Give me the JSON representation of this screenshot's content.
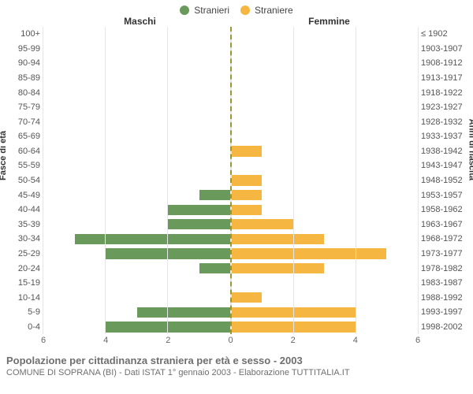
{
  "legend": {
    "male_label": "Stranieri",
    "female_label": "Straniere"
  },
  "panel_titles": {
    "left": "Maschi",
    "right": "Femmine"
  },
  "axis_labels": {
    "left": "Fasce di età",
    "right": "Anni di nascita"
  },
  "colors": {
    "male": "#6a9a5b",
    "female": "#f5b742",
    "grid": "#e6e6e6",
    "center_dash": "#999933",
    "background": "#ffffff",
    "text": "#555555"
  },
  "chart": {
    "type": "population-pyramid",
    "x_max": 6,
    "x_ticks": [
      0,
      2,
      4,
      6
    ],
    "rows": [
      {
        "age": "100+",
        "year": "≤ 1902",
        "male": 0,
        "female": 0
      },
      {
        "age": "95-99",
        "year": "1903-1907",
        "male": 0,
        "female": 0
      },
      {
        "age": "90-94",
        "year": "1908-1912",
        "male": 0,
        "female": 0
      },
      {
        "age": "85-89",
        "year": "1913-1917",
        "male": 0,
        "female": 0
      },
      {
        "age": "80-84",
        "year": "1918-1922",
        "male": 0,
        "female": 0
      },
      {
        "age": "75-79",
        "year": "1923-1927",
        "male": 0,
        "female": 0
      },
      {
        "age": "70-74",
        "year": "1928-1932",
        "male": 0,
        "female": 0
      },
      {
        "age": "65-69",
        "year": "1933-1937",
        "male": 0,
        "female": 0
      },
      {
        "age": "60-64",
        "year": "1938-1942",
        "male": 0,
        "female": 1
      },
      {
        "age": "55-59",
        "year": "1943-1947",
        "male": 0,
        "female": 0
      },
      {
        "age": "50-54",
        "year": "1948-1952",
        "male": 0,
        "female": 1
      },
      {
        "age": "45-49",
        "year": "1953-1957",
        "male": 1,
        "female": 1
      },
      {
        "age": "40-44",
        "year": "1958-1962",
        "male": 2,
        "female": 1
      },
      {
        "age": "35-39",
        "year": "1963-1967",
        "male": 2,
        "female": 2
      },
      {
        "age": "30-34",
        "year": "1968-1972",
        "male": 5,
        "female": 3
      },
      {
        "age": "25-29",
        "year": "1973-1977",
        "male": 4,
        "female": 5
      },
      {
        "age": "20-24",
        "year": "1978-1982",
        "male": 1,
        "female": 3
      },
      {
        "age": "15-19",
        "year": "1983-1987",
        "male": 0,
        "female": 0
      },
      {
        "age": "10-14",
        "year": "1988-1992",
        "male": 0,
        "female": 1
      },
      {
        "age": "5-9",
        "year": "1993-1997",
        "male": 3,
        "female": 4
      },
      {
        "age": "0-4",
        "year": "1998-2002",
        "male": 4,
        "female": 4
      }
    ]
  },
  "caption": {
    "title": "Popolazione per cittadinanza straniera per età e sesso - 2003",
    "subtitle": "COMUNE DI SOPRANA (BI) - Dati ISTAT 1° gennaio 2003 - Elaborazione TUTTITALIA.IT"
  }
}
